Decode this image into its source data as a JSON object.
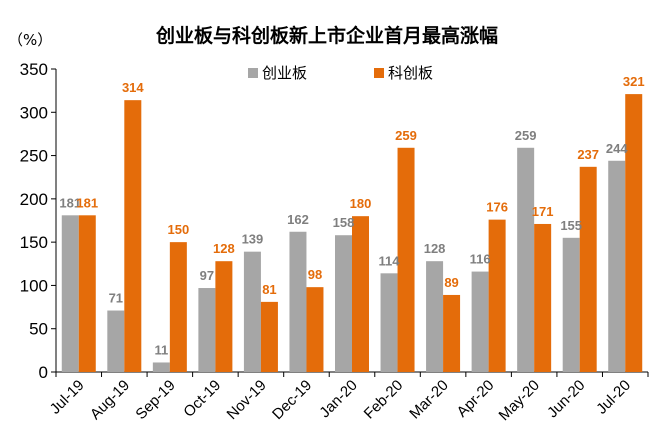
{
  "chart_data": {
    "type": "bar",
    "title": "创业板与科创板新上市企业首月最高涨幅",
    "ylabel": "（%）",
    "xlabel": "",
    "ylim": [
      0,
      350
    ],
    "yticks": [
      0,
      50,
      100,
      150,
      200,
      250,
      300,
      350
    ],
    "grid": false,
    "legend_position": "top-center",
    "categories": [
      "Jul-19",
      "Aug-19",
      "Sep-19",
      "Oct-19",
      "Nov-19",
      "Dec-19",
      "Jan-20",
      "Feb-20",
      "Mar-20",
      "Apr-20",
      "May-20",
      "Jun-20",
      "Jul-20"
    ],
    "series": [
      {
        "name": "创业板",
        "color": "#a6a6a6",
        "label_color": "#7f7f7f",
        "values": [
          181,
          71,
          11,
          97,
          139,
          162,
          158,
          114,
          128,
          116,
          259,
          155,
          244
        ]
      },
      {
        "name": "科创板",
        "color": "#e46c0a",
        "label_color": "#e46c0a",
        "values": [
          181,
          314,
          150,
          128,
          81,
          98,
          180,
          259,
          89,
          176,
          171,
          237,
          321
        ]
      }
    ]
  }
}
